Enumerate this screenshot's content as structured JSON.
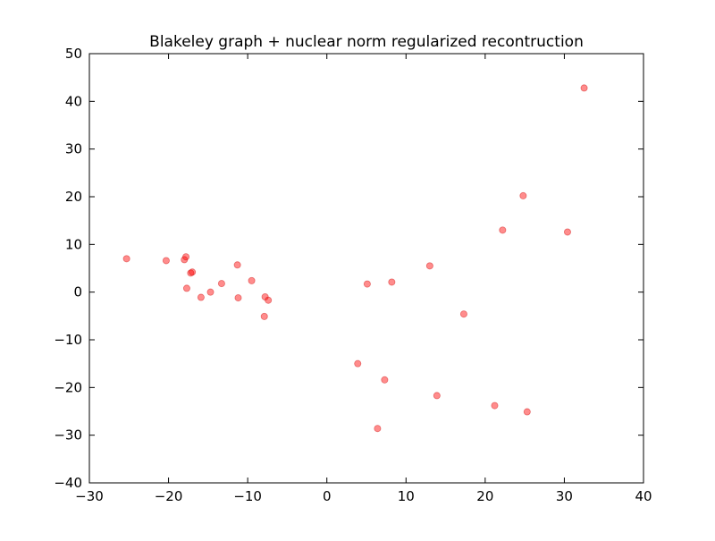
{
  "chart_data": {
    "type": "scatter",
    "title": "Blakeley graph + nuclear norm regularized recontruction",
    "xlabel": "",
    "ylabel": "",
    "xlim": [
      -30,
      40
    ],
    "ylim": [
      -40,
      50
    ],
    "xticks": [
      -30,
      -20,
      -10,
      0,
      10,
      20,
      30,
      40
    ],
    "yticks": [
      -40,
      -30,
      -20,
      -10,
      0,
      10,
      20,
      30,
      40,
      50
    ],
    "grid": false,
    "marker_color": "#ff0000",
    "marker_edge_color": "#cc0000",
    "marker_opacity": 0.45,
    "series": [
      {
        "points": [
          [
            -25.3,
            7.0
          ],
          [
            -20.3,
            6.6
          ],
          [
            -18.0,
            6.8
          ],
          [
            -17.8,
            7.4
          ],
          [
            -17.2,
            4.0
          ],
          [
            -17.0,
            4.2
          ],
          [
            -17.7,
            0.8
          ],
          [
            -15.9,
            -1.1
          ],
          [
            -14.7,
            0.0
          ],
          [
            -13.3,
            1.8
          ],
          [
            -11.3,
            5.7
          ],
          [
            -11.2,
            -1.2
          ],
          [
            -9.5,
            2.4
          ],
          [
            -7.8,
            -1.0
          ],
          [
            -7.4,
            -1.7
          ],
          [
            -7.9,
            -5.1
          ],
          [
            5.1,
            1.7
          ],
          [
            8.2,
            2.1
          ],
          [
            13.0,
            5.5
          ],
          [
            17.3,
            -4.6
          ],
          [
            22.2,
            13.0
          ],
          [
            24.8,
            20.2
          ],
          [
            30.4,
            12.6
          ],
          [
            32.5,
            42.8
          ],
          [
            3.9,
            -15.0
          ],
          [
            7.3,
            -18.4
          ],
          [
            13.9,
            -21.7
          ],
          [
            21.2,
            -23.8
          ],
          [
            25.3,
            -25.1
          ],
          [
            6.4,
            -28.6
          ]
        ]
      }
    ]
  }
}
